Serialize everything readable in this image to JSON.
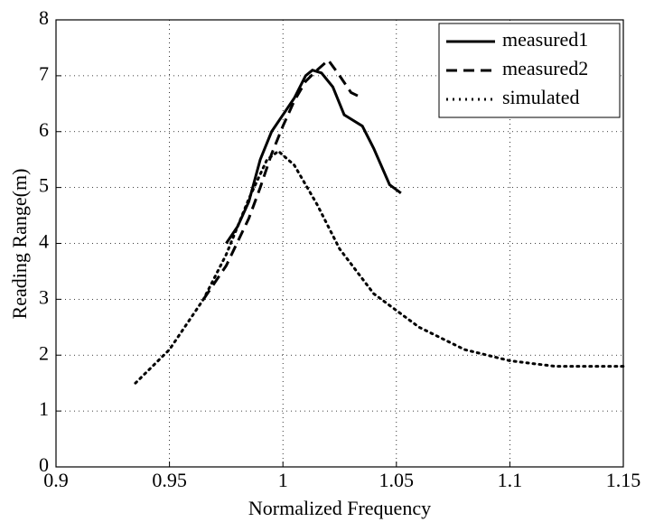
{
  "chart_data": {
    "type": "line",
    "xlabel": "Normalized Frequency",
    "ylabel": "Reading Range(m)",
    "xlim": [
      0.9,
      1.15
    ],
    "xticks": [
      0.9,
      0.95,
      1,
      1.05,
      1.1,
      1.15
    ],
    "ylim": [
      0,
      8
    ],
    "yticks": [
      0,
      1,
      2,
      3,
      4,
      5,
      6,
      7,
      8
    ],
    "grid": true,
    "legend": "upper right",
    "series": [
      {
        "name": "measured1",
        "color": "#000000",
        "style": "solid",
        "x": [
          0.975,
          0.98,
          0.985,
          0.99,
          0.995,
          1.0,
          1.005,
          1.01,
          1.013,
          1.017,
          1.022,
          1.027,
          1.035,
          1.04,
          1.047,
          1.052
        ],
        "values": [
          4.0,
          4.3,
          4.75,
          5.5,
          6.0,
          6.3,
          6.6,
          7.0,
          7.1,
          7.05,
          6.8,
          6.3,
          6.1,
          5.7,
          5.05,
          4.9
        ]
      },
      {
        "name": "measured2",
        "color": "#000000",
        "style": "dashed",
        "x": [
          0.965,
          0.975,
          0.985,
          0.99,
          0.995,
          1.0,
          1.005,
          1.01,
          1.015,
          1.02,
          1.025,
          1.03,
          1.035
        ],
        "values": [
          3.0,
          3.6,
          4.45,
          5.0,
          5.6,
          6.1,
          6.55,
          6.9,
          7.1,
          7.28,
          7.0,
          6.7,
          6.6
        ]
      },
      {
        "name": "simulated",
        "color": "#000000",
        "style": "dotted",
        "x": [
          0.935,
          0.95,
          0.965,
          0.975,
          0.985,
          0.993,
          0.998,
          1.005,
          1.015,
          1.025,
          1.04,
          1.06,
          1.08,
          1.1,
          1.12,
          1.15
        ],
        "values": [
          1.5,
          2.1,
          3.0,
          3.8,
          4.8,
          5.5,
          5.65,
          5.4,
          4.7,
          3.9,
          3.1,
          2.5,
          2.1,
          1.9,
          1.8,
          1.8
        ]
      }
    ]
  }
}
